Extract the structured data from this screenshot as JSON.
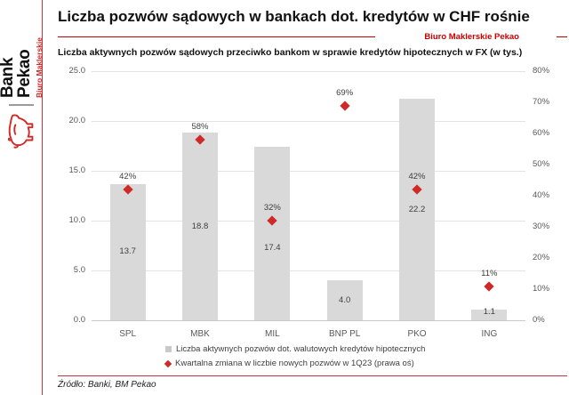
{
  "logo": {
    "bank_name": "Bank Pekao",
    "unit": "Biuro Maklerskie"
  },
  "header": {
    "title": "Liczba pozwów sądowych w bankach dot. kredytów w CHF rośnie",
    "byline": "Biuro Maklerskie Pekao"
  },
  "colors": {
    "brand_red": "#c00000",
    "marker_red": "#cf2a27",
    "bar_gray": "#d9d9d9",
    "grid_gray": "#e3e3e3",
    "axis_text": "#595959"
  },
  "chart_data": {
    "type": "bar",
    "title": "Liczba aktywnych pozwów sądowych przeciwko bankom w sprawie kredytów hipotecznych w FX (w tys.)",
    "categories": [
      "SPL",
      "MBK",
      "MIL",
      "BNP PL",
      "PKO",
      "ING"
    ],
    "series": [
      {
        "name": "Liczba aktywnych pozwów dot. walutowych kredytów hipotecznych",
        "type": "bar",
        "axis": "left",
        "values": [
          13.7,
          18.8,
          17.4,
          4.0,
          22.2,
          1.1
        ],
        "labels": [
          "13.7",
          "18.8",
          "17.4",
          "4.0",
          "22.2",
          "1.1"
        ]
      },
      {
        "name": "Kwartalna zmiana w liczbie nowych pozwów w 1Q23 (prawa oś)",
        "type": "scatter",
        "marker": "diamond",
        "axis": "right",
        "values": [
          42,
          58,
          32,
          69,
          42,
          11
        ],
        "labels": [
          "42%",
          "58%",
          "32%",
          "69%",
          "42%",
          "11%"
        ]
      }
    ],
    "left_axis": {
      "min": 0,
      "max": 25,
      "step": 5,
      "ticks": [
        "0.0",
        "5.0",
        "10.0",
        "15.0",
        "20.0",
        "25.0"
      ]
    },
    "right_axis": {
      "min": 0,
      "max": 80,
      "step": 10,
      "ticks": [
        "0%",
        "10%",
        "20%",
        "30%",
        "40%",
        "50%",
        "60%",
        "70%",
        "80%"
      ]
    },
    "grid": "horizontal",
    "legend_position": "bottom",
    "layout_hints": {
      "bar_label_dy": [
        0,
        0,
        16,
        0,
        0,
        -3
      ]
    }
  },
  "footer": {
    "source": "Źródło: Banki, BM Pekao"
  }
}
